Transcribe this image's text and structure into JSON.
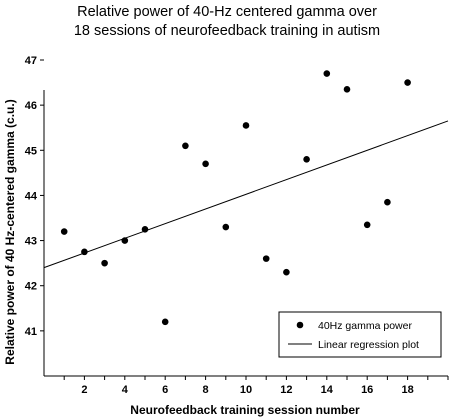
{
  "chart_data": {
    "type": "scatter",
    "title": "Relative power of 40-Hz centered gamma over",
    "subtitle": "18 sessions of neurofeedback training in autism",
    "xlabel": "Neurofeedback training session number",
    "ylabel": "Relative power of 40 Hz-centered gamma (c.u.)",
    "xlim": [
      0,
      20
    ],
    "ylim": [
      40,
      47
    ],
    "x_ticks": [
      2,
      4,
      6,
      8,
      10,
      12,
      14,
      16,
      18
    ],
    "y_ticks": [
      41,
      42,
      43,
      44,
      45,
      46,
      47
    ],
    "grid": false,
    "legend_position": "bottom-right",
    "series": [
      {
        "name": "40Hz gamma power",
        "marker": "circle",
        "color": "#000000",
        "x": [
          1,
          2,
          3,
          4,
          5,
          6,
          7,
          8,
          9,
          10,
          11,
          12,
          13,
          14,
          15,
          16,
          17,
          18
        ],
        "y": [
          43.2,
          42.75,
          42.5,
          43.0,
          43.25,
          41.2,
          45.1,
          44.7,
          43.3,
          45.55,
          42.6,
          42.3,
          44.8,
          46.7,
          46.35,
          43.35,
          43.85,
          46.5
        ]
      },
      {
        "name": "Linear regression plot",
        "type": "line",
        "color": "#000000",
        "x": [
          0,
          20
        ],
        "y": [
          42.4,
          45.65
        ]
      }
    ]
  }
}
